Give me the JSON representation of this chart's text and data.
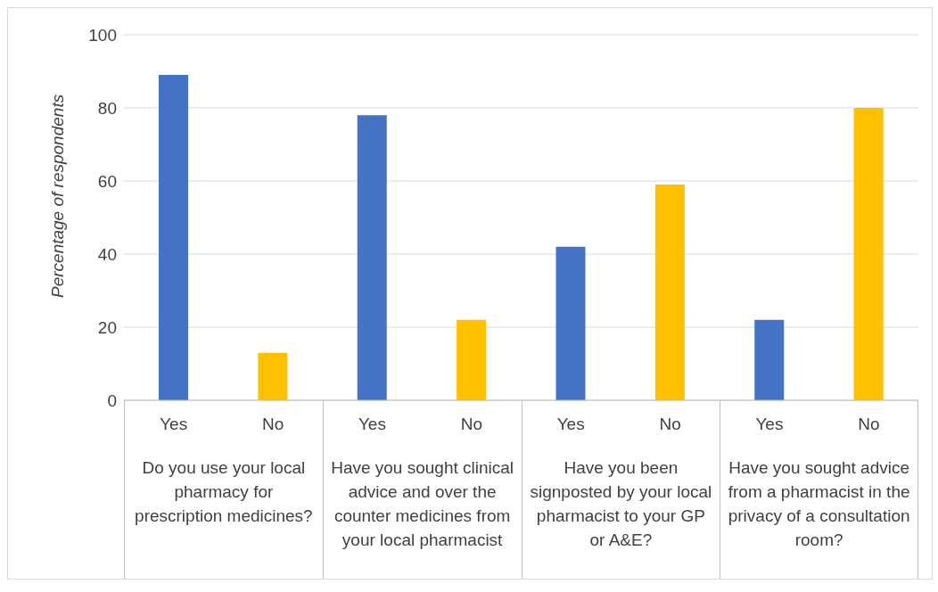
{
  "chart_data": {
    "type": "bar",
    "ylabel": "Percentage of respondents",
    "categories": [
      "Yes",
      "No",
      "Yes",
      "No",
      "Yes",
      "No",
      "Yes",
      "No"
    ],
    "values": [
      89,
      13,
      78,
      22,
      42,
      59,
      22,
      80
    ],
    "colors": [
      "#4472c4",
      "#ffc000",
      "#4472c4",
      "#ffc000",
      "#4472c4",
      "#ffc000",
      "#4472c4",
      "#ffc000"
    ],
    "ylim": [
      0,
      100
    ],
    "yticks": [
      0,
      20,
      40,
      60,
      80,
      100
    ],
    "grid": "y",
    "annotations": [
      "Do you use your local pharmacy for prescription medicines?",
      "Have you sought clinical advice and over the counter medicines from your local pharmacist",
      "Have you been signposted by your local pharmacist to your GP or A&E?",
      "Have you sought advice from a pharmacist in the privacy of a consultation room?"
    ]
  }
}
